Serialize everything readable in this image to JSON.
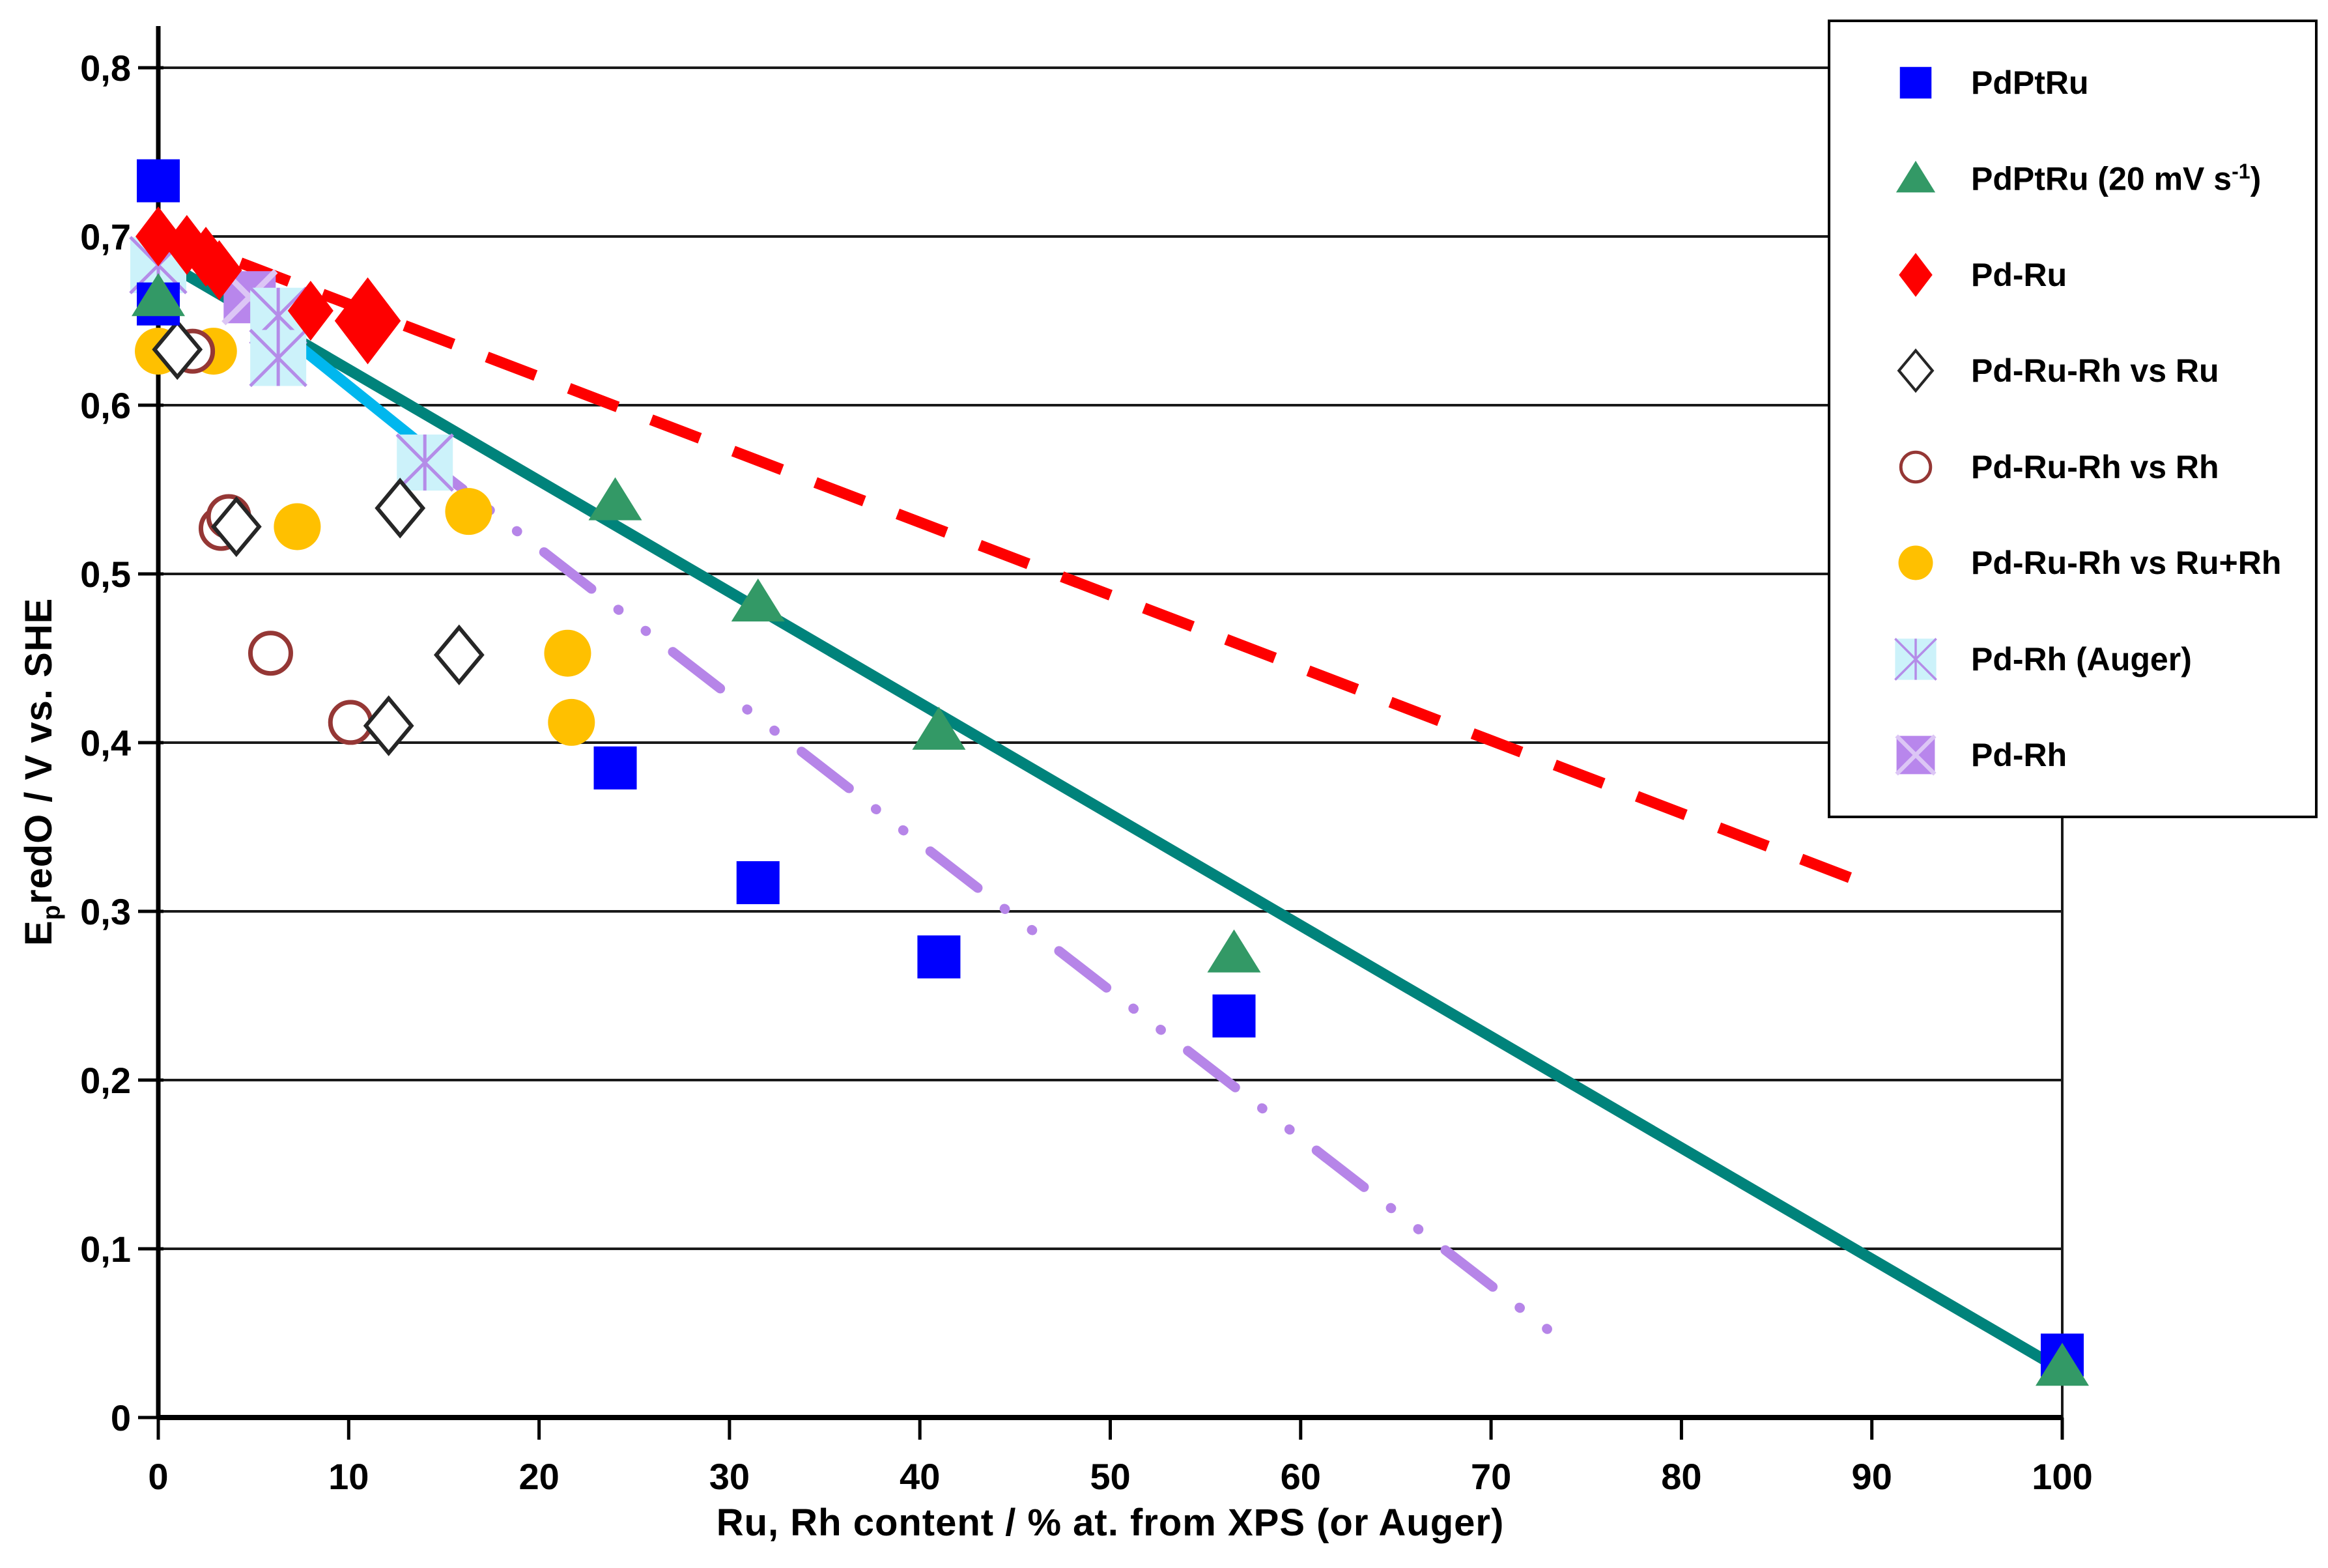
{
  "chart_data": {
    "type": "scatter",
    "title": "",
    "xlabel": "Ru, Rh content / % at. from XPS (or Auger)",
    "ylabel_parts": {
      "pre": "E",
      "sub": "p",
      "post": "redO / V vs. SHE"
    },
    "xlim": [
      0,
      100
    ],
    "ylim": [
      0,
      0.8
    ],
    "grid": "horizontal",
    "legend_position": "top-right",
    "x_axis": {
      "tick_values": [
        0,
        10,
        20,
        30,
        40,
        50,
        60,
        70,
        80,
        90,
        100
      ],
      "tick_labels": [
        "0",
        "10",
        "20",
        "30",
        "40",
        "50",
        "60",
        "70",
        "80",
        "90",
        "100"
      ]
    },
    "y_axis": {
      "tick_values": [
        0,
        0.1,
        0.2,
        0.3,
        0.4,
        0.5,
        0.6,
        0.7,
        0.8
      ],
      "tick_labels": [
        "0",
        "0,1",
        "0,2",
        "0,3",
        "0,4",
        "0,5",
        "0,6",
        "0,7",
        "0,8"
      ]
    },
    "series": [
      {
        "id": "pdptru",
        "label": "PdPtRu",
        "label_sup": "",
        "label_end": "",
        "marker": "square",
        "color": "#0000FE",
        "points": [
          [
            0,
            0.733
          ],
          [
            0,
            0.66
          ],
          [
            24,
            0.385
          ],
          [
            31.5,
            0.317
          ],
          [
            41,
            0.273
          ],
          [
            56.5,
            0.238
          ],
          [
            100,
            0.037
          ]
        ]
      },
      {
        "id": "pdptru-20mvs",
        "label": "PdPtRu (20 mV s",
        "label_sup": "-1",
        "label_end": ")",
        "marker": "triangle",
        "color": "#339966",
        "points": [
          [
            0,
            0.664
          ],
          [
            24,
            0.543
          ],
          [
            31.5,
            0.483
          ],
          [
            41,
            0.407
          ],
          [
            56.5,
            0.275
          ],
          [
            100,
            0.03
          ]
        ]
      },
      {
        "id": "pd-ru",
        "label": "Pd-Ru",
        "label_sup": "",
        "label_end": "",
        "marker": "diamond",
        "color": "#FE0000",
        "points": [
          [
            0,
            0.7
          ],
          [
            1.5,
            0.695
          ],
          [
            2.5,
            0.688
          ],
          [
            3.2,
            0.68
          ],
          [
            8,
            0.656
          ],
          [
            11,
            0.65,
            1.45
          ]
        ]
      },
      {
        "id": "pd-ru-rh-vs-ru",
        "label": "Pd-Ru-Rh vs Ru",
        "label_sup": "",
        "label_end": "",
        "marker": "open-diamond",
        "color": "#262626",
        "points": [
          [
            1,
            0.633
          ],
          [
            4.1,
            0.528
          ],
          [
            12.1,
            0.41
          ],
          [
            12.7,
            0.539
          ],
          [
            15.8,
            0.452
          ]
        ]
      },
      {
        "id": "pd-ru-rh-vs-rh",
        "label": "Pd-Ru-Rh vs Rh",
        "label_sup": "",
        "label_end": "",
        "marker": "open-circle",
        "color": "#953735",
        "points": [
          [
            1.8,
            0.632
          ],
          [
            3.3,
            0.527
          ],
          [
            3.7,
            0.534
          ],
          [
            5.9,
            0.453
          ],
          [
            10.1,
            0.412
          ]
        ]
      },
      {
        "id": "pd-ru-rh-vs-rurh",
        "label": "Pd-Ru-Rh vs Ru+Rh",
        "label_sup": "",
        "label_end": "",
        "marker": "circle",
        "color": "#FFC000",
        "points": [
          [
            0,
            0.632
          ],
          [
            2.9,
            0.632
          ],
          [
            7.3,
            0.528
          ],
          [
            16.3,
            0.537
          ],
          [
            21.5,
            0.453
          ],
          [
            21.7,
            0.412
          ]
        ]
      },
      {
        "id": "pd-rh-auger",
        "label": "Pd-Rh (Auger)",
        "label_sup": "",
        "label_end": "",
        "marker": "asterisk-square",
        "color": "#CCF2FA",
        "accent": "#B48CE8",
        "points": [
          [
            0,
            0.683
          ],
          [
            6.3,
            0.653
          ],
          [
            6.3,
            0.628
          ],
          [
            14,
            0.566
          ]
        ]
      },
      {
        "id": "pd-rh",
        "label": "Pd-Rh",
        "label_sup": "",
        "label_end": "",
        "marker": "x-square",
        "color": "#B886EC",
        "accent": "#DCC6F5",
        "points": [
          [
            4.8,
            0.664
          ]
        ]
      }
    ],
    "trend_lines": [
      {
        "id": "pd-ru-trend",
        "color": "#FE0000",
        "style": "dashed",
        "width": 17,
        "from": [
          0,
          0.703
        ],
        "to": [
          90,
          0.315
        ]
      },
      {
        "id": "pdptru-20mvs-trend",
        "color": "#00837B",
        "style": "solid",
        "width": 17,
        "from": [
          0,
          0.687
        ],
        "to": [
          100,
          0.028
        ]
      },
      {
        "id": "pdptru-trend-short",
        "color": "#00B7EE",
        "style": "solid",
        "width": 17,
        "from": [
          0,
          0.702
        ],
        "to": [
          14,
          0.575
        ]
      },
      {
        "id": "pd-rh-trend",
        "color": "#B685E8",
        "style": "dash-dot-dot",
        "width": 15,
        "from": [
          13.5,
          0.572
        ],
        "to": [
          73,
          0.052
        ]
      }
    ]
  }
}
